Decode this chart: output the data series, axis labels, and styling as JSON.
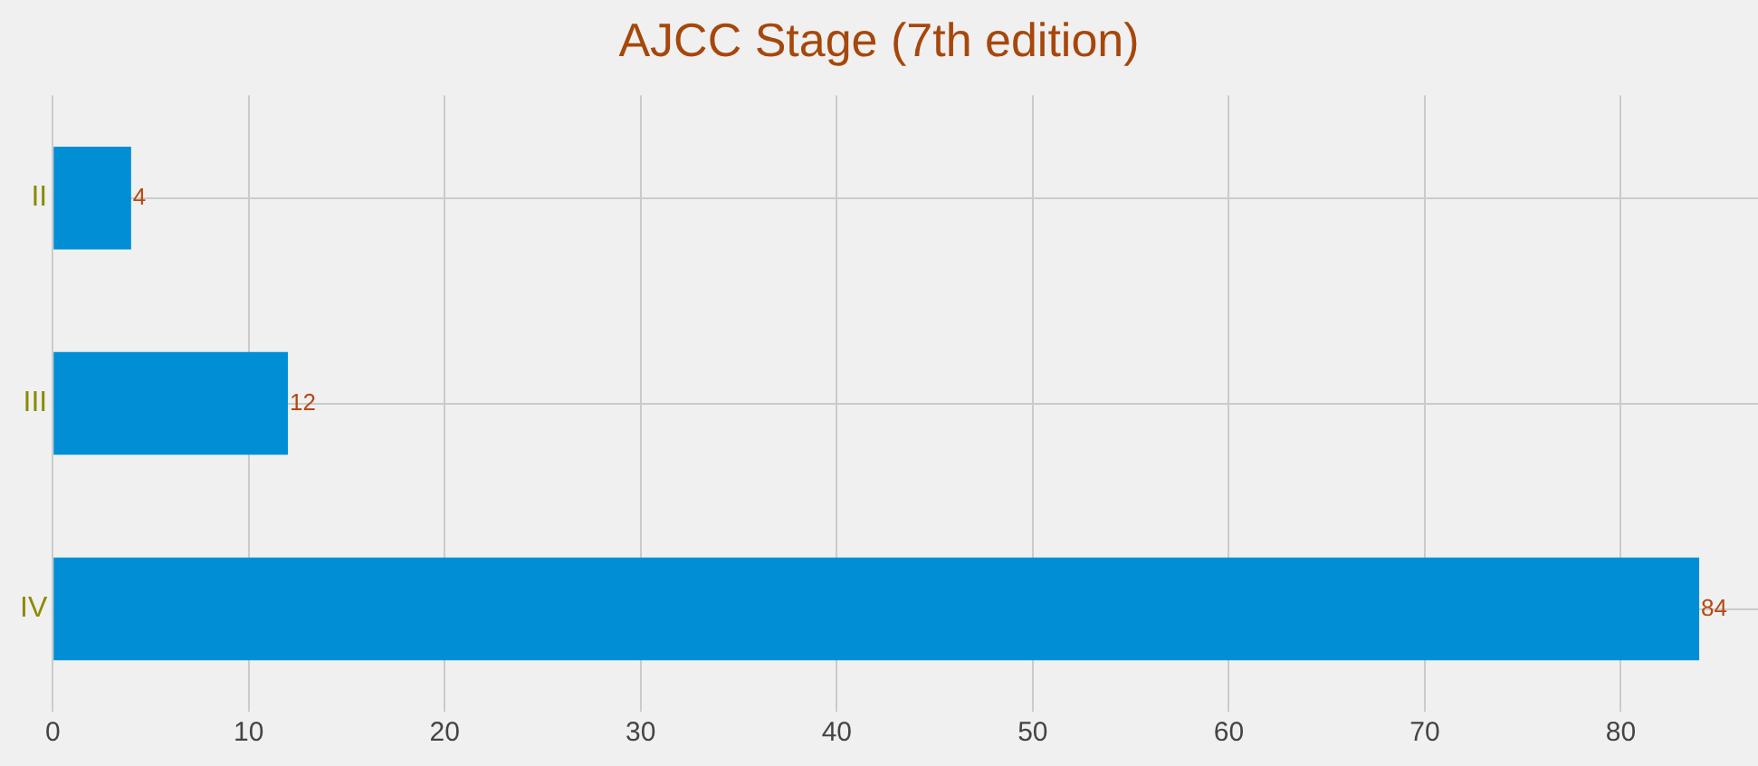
{
  "chart_data": {
    "type": "bar",
    "orientation": "horizontal",
    "title": "AJCC Stage (7th edition)",
    "categories": [
      "II",
      "III",
      "IV"
    ],
    "values": [
      4,
      12,
      84
    ],
    "color": "#008fd5",
    "xlim": [
      0,
      87
    ],
    "xticks": [
      0,
      10,
      20,
      30,
      40,
      50,
      60,
      70,
      80
    ],
    "grid": true,
    "data_labels": true,
    "legend": false
  }
}
